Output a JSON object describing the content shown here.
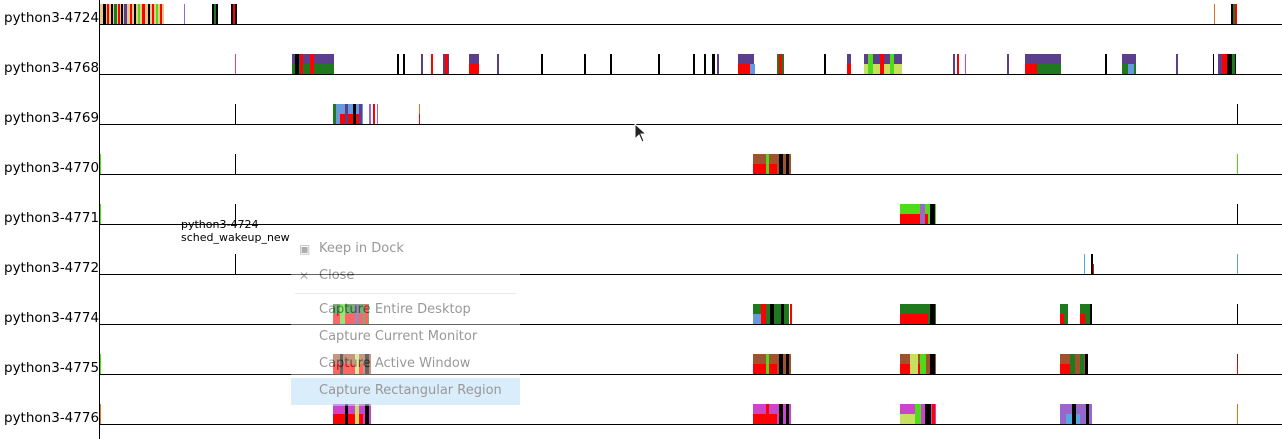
{
  "palette": {
    "red": "#ff0000",
    "green": "#1f7a1f",
    "lime": "#4ddb1a",
    "purple": "#5b3f8c",
    "lightblue": "#6699dd",
    "black": "#000000",
    "tan": "#e8c98a",
    "yellowgreen": "#c8e060",
    "brown": "#a0522d",
    "magenta": "#cc44cc",
    "cyan": "#55aadd",
    "orange": "#d47a1a",
    "violet": "#9966cc",
    "darkred": "#8b1a1a"
  },
  "rows": [
    {
      "label": "python3-4724"
    },
    {
      "label": "python3-4768"
    },
    {
      "label": "python3-4769"
    },
    {
      "label": "python3-4770"
    },
    {
      "label": "python3-4771"
    },
    {
      "label": "python3-4772"
    },
    {
      "label": "python3-4774"
    },
    {
      "label": "python3-4775"
    },
    {
      "label": "python3-4776"
    }
  ],
  "hover_info": {
    "task": "python3-4724",
    "event": "sched_wakeup_new"
  },
  "context_menu": {
    "items": [
      {
        "label": "Keep in Dock",
        "icon": "dock-checkbox-icon"
      },
      {
        "label": "Close",
        "icon": "close-icon"
      },
      {
        "label": "Capture Entire Desktop",
        "icon": ""
      },
      {
        "label": "Capture Current Monitor",
        "icon": ""
      },
      {
        "label": "Capture Active Window",
        "icon": ""
      },
      {
        "label": "Capture Rectangular Region",
        "icon": "",
        "highlighted": true
      }
    ]
  }
}
